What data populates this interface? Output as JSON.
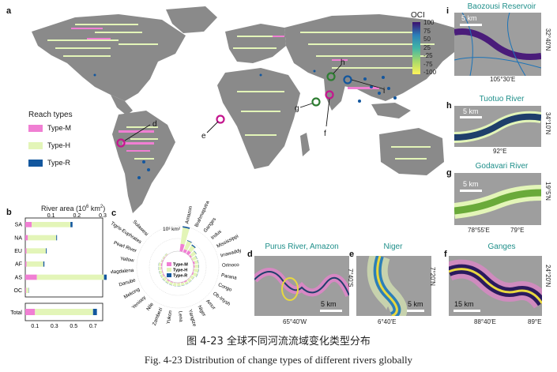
{
  "figure": {
    "caption_cn": "图 4-23 全球不同河流流域变化类型分布",
    "caption_en": "Fig. 4-23 Distribution of change types of different rivers globally"
  },
  "panel_a": {
    "letter": "a",
    "colorbar_title": "OCI",
    "colorbar_ticks": [
      "100",
      "75",
      "50",
      "25",
      "-25",
      "-75",
      "-100"
    ],
    "legend_title": "Reach types",
    "legend": [
      {
        "label": "Type-M",
        "color": "#f07fd3"
      },
      {
        "label": "Type-H",
        "color": "#e3f5b8"
      },
      {
        "label": "Type-R",
        "color": "#13579e"
      }
    ],
    "markers": [
      "d",
      "e",
      "f",
      "g",
      "h",
      "i"
    ]
  },
  "panel_b": {
    "letter": "b",
    "axis_title": "River area (10",
    "axis_title_sup": "6",
    "axis_title_unit": " km",
    "axis_title_sup2": "2",
    "axis_title_close": ")",
    "chart_data": {
      "type": "bar",
      "categories": [
        "SA",
        "NA",
        "EU",
        "AF",
        "AS",
        "OC"
      ],
      "series": [
        {
          "name": "Type-M",
          "values": [
            0.025,
            0.01,
            0.005,
            0.005,
            0.045,
            0.003
          ]
        },
        {
          "name": "Type-H",
          "values": [
            0.15,
            0.11,
            0.075,
            0.065,
            0.26,
            0.01
          ]
        },
        {
          "name": "Type-R",
          "values": [
            0.008,
            0.003,
            0.003,
            0.004,
            0.012,
            0.001
          ]
        }
      ],
      "top_ticks": [
        "0.1",
        "0.2",
        "0.3"
      ],
      "top_xlim": [
        0,
        0.3
      ],
      "total": {
        "label": "Total",
        "values": [
          0.1,
          0.6,
          0.04
        ]
      },
      "bottom_ticks": [
        "0.1",
        "0.3",
        "0.5",
        "0.7"
      ],
      "bottom_xlim": [
        0,
        0.8
      ]
    }
  },
  "panel_c": {
    "letter": "c",
    "unit_label": "10³ km²",
    "legend": [
      "Type-M",
      "Type-H",
      "Type-R"
    ],
    "chart_data": {
      "type": "bar",
      "rivers": [
        "Amazon",
        "Brahmaputra",
        "Ganges",
        "Indus",
        "Mississippi",
        "Irrawaddy",
        "Orinoco",
        "Parana",
        "Congo",
        "Ob-Irtysh",
        "Amur",
        "Niger",
        "Yangtze",
        "Lena",
        "Yukon",
        "Zambezi",
        "Nile",
        "Yenisey",
        "Mekong",
        "Danube",
        "Magdalena",
        "Yellow",
        "Pearl River",
        "Tigris-Euphrates",
        "Sulawesi"
      ],
      "totals": [
        14,
        7,
        6,
        4,
        3,
        3,
        3,
        3,
        3,
        2,
        2,
        2,
        2,
        2,
        2,
        2,
        2,
        2,
        2,
        2,
        2,
        2,
        1,
        1,
        1
      ],
      "m_share": [
        0.3,
        0.25,
        0.35,
        0.2,
        0.1,
        0.3,
        0.2,
        0.1,
        0.2,
        0.1,
        0.1,
        0.3,
        0.15,
        0.1,
        0.1,
        0.2,
        0.3,
        0.1,
        0.25,
        0.15,
        0.2,
        0.3,
        0.4,
        0.3,
        0.2
      ],
      "r_share": [
        0.05,
        0.05,
        0.1,
        0.05,
        0.05,
        0.05,
        0.05,
        0.05,
        0.05,
        0.05,
        0.05,
        0.05,
        0.05,
        0.05,
        0.05,
        0.05,
        0.05,
        0.05,
        0.05,
        0.05,
        0.05,
        0.05,
        0.05,
        0.05,
        0.05
      ]
    }
  },
  "insets": {
    "d": {
      "letter": "d",
      "title": "Purus River, Amazon",
      "scale": "5 km",
      "lon": "65°40'W",
      "lat": "7°40'S"
    },
    "e": {
      "letter": "e",
      "title": "Niger",
      "scale": "5 km",
      "lon": "6°40'E",
      "lat": "7°20'N"
    },
    "f": {
      "letter": "f",
      "title": "Ganges",
      "scale": "15 km",
      "lon1": "88°40'E",
      "lon2": "89°E",
      "lat": "24°20'N"
    },
    "g": {
      "letter": "g",
      "title": "Godavari River",
      "scale": "5 km",
      "lon1": "78°55'E",
      "lon2": "79°E",
      "lat": "19°5'N"
    },
    "h": {
      "letter": "h",
      "title": "Tuotuo River",
      "scale": "5 km",
      "lon": "92°E",
      "lat": "34°10'N"
    },
    "i": {
      "letter": "i",
      "title": "Baozousi Reservoir",
      "scale": "5 km",
      "lon": "105°30'E",
      "lat": "32°40'N"
    }
  }
}
